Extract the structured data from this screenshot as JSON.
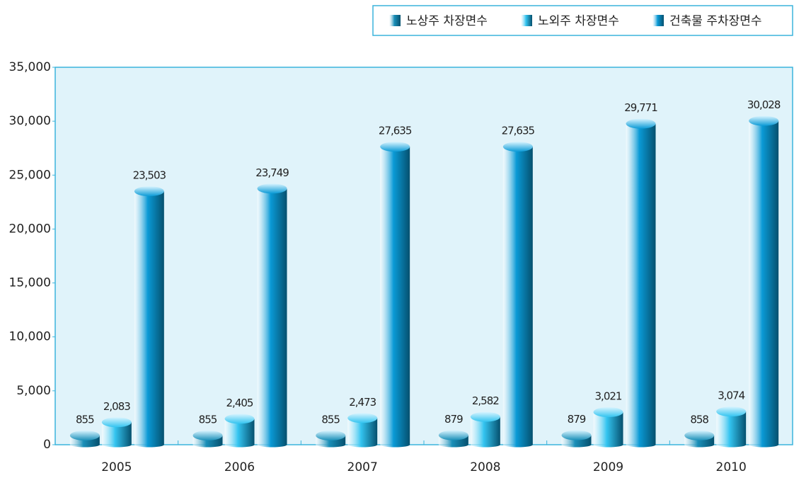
{
  "chart_data": {
    "type": "bar",
    "categories": [
      "2005",
      "2006",
      "2007",
      "2008",
      "2009",
      "2010"
    ],
    "series": [
      {
        "name": "노상주 차장면수",
        "color": "#1a8fb8",
        "values": [
          855,
          855,
          855,
          879,
          879,
          858
        ],
        "value_labels": [
          "855",
          "855",
          "855",
          "879",
          "879",
          "858"
        ]
      },
      {
        "name": "노외주 차장면수",
        "color": "#33c4f0",
        "values": [
          2083,
          2405,
          2473,
          2582,
          3021,
          3074
        ],
        "value_labels": [
          "2,083",
          "2,405",
          "2,473",
          "2,582",
          "3,021",
          "3,074"
        ]
      },
      {
        "name": "건축물 주차장면수",
        "color": "#0a9ad6",
        "values": [
          23503,
          23749,
          27635,
          27635,
          29771,
          30028
        ],
        "value_labels": [
          "23,503",
          "23,749",
          "27,635",
          "27,635",
          "29,771",
          "30,028"
        ]
      }
    ],
    "ylim": [
      0,
      35000
    ],
    "yticks": [
      0,
      {
        "value": 5000,
        "label": "5,000"
      },
      {
        "value": 10000,
        "label": "10,000"
      },
      {
        "value": 15000,
        "label": "15,000"
      },
      {
        "value": 20000,
        "label": "20,000"
      },
      {
        "value": 25000,
        "label": "25,000"
      },
      {
        "value": 30000,
        "label": "30,000"
      },
      {
        "value": 35000,
        "label": "35,000"
      }
    ],
    "legend": "top-right"
  }
}
